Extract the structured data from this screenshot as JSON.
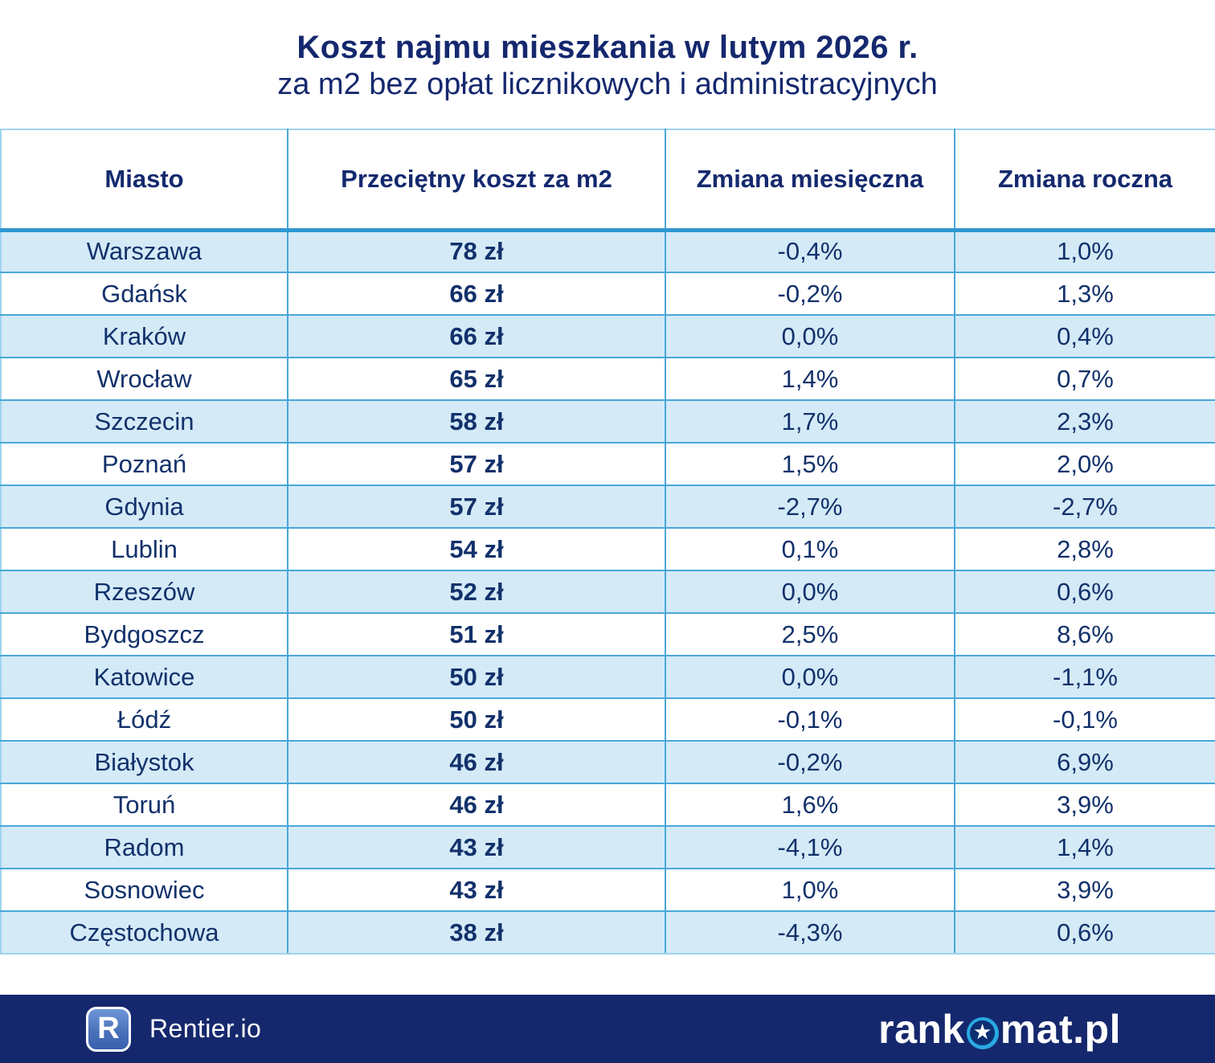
{
  "title": {
    "line1": "Koszt najmu mieszkania w lutym 2026 r.",
    "line2": "za m2 bez opłat licznikowych i administracyjnych"
  },
  "chart_data": {
    "type": "table",
    "title": "Koszt najmu mieszkania w lutym 2026 r. za m2 bez opłat licznikowych i administracyjnych",
    "columns": [
      "Miasto",
      "Przeciętny koszt za m2",
      "Zmiana miesięczna",
      "Zmiana roczna"
    ],
    "rows": [
      {
        "city": "Warszawa",
        "cost": "78 zł",
        "monthly": "-0,4%",
        "yearly": "1,0%"
      },
      {
        "city": "Gdańsk",
        "cost": "66 zł",
        "monthly": "-0,2%",
        "yearly": "1,3%"
      },
      {
        "city": "Kraków",
        "cost": "66 zł",
        "monthly": "0,0%",
        "yearly": "0,4%"
      },
      {
        "city": "Wrocław",
        "cost": "65 zł",
        "monthly": "1,4%",
        "yearly": "0,7%"
      },
      {
        "city": "Szczecin",
        "cost": "58 zł",
        "monthly": "1,7%",
        "yearly": "2,3%"
      },
      {
        "city": "Poznań",
        "cost": "57 zł",
        "monthly": "1,5%",
        "yearly": "2,0%"
      },
      {
        "city": "Gdynia",
        "cost": "57 zł",
        "monthly": "-2,7%",
        "yearly": "-2,7%"
      },
      {
        "city": "Lublin",
        "cost": "54 zł",
        "monthly": "0,1%",
        "yearly": "2,8%"
      },
      {
        "city": "Rzeszów",
        "cost": "52 zł",
        "monthly": "0,0%",
        "yearly": "0,6%"
      },
      {
        "city": "Bydgoszcz",
        "cost": "51 zł",
        "monthly": "2,5%",
        "yearly": "8,6%"
      },
      {
        "city": "Katowice",
        "cost": "50 zł",
        "monthly": "0,0%",
        "yearly": "-1,1%"
      },
      {
        "city": "Łódź",
        "cost": "50 zł",
        "monthly": "-0,1%",
        "yearly": "-0,1%"
      },
      {
        "city": "Białystok",
        "cost": "46 zł",
        "monthly": "-0,2%",
        "yearly": "6,9%"
      },
      {
        "city": "Toruń",
        "cost": "46 zł",
        "monthly": "1,6%",
        "yearly": "3,9%"
      },
      {
        "city": "Radom",
        "cost": "43 zł",
        "monthly": "-4,1%",
        "yearly": "1,4%"
      },
      {
        "city": "Sosnowiec",
        "cost": "43 zł",
        "monthly": "1,0%",
        "yearly": "3,9%"
      },
      {
        "city": "Częstochowa",
        "cost": "38 zł",
        "monthly": "-4,3%",
        "yearly": "0,6%"
      }
    ]
  },
  "footer": {
    "rentier_badge_letter": "R",
    "rentier_label": "Rentier.io",
    "rankomat_part1": "rank",
    "rankomat_part2": "mat.pl",
    "rankomat_star": "★"
  },
  "colors": {
    "navy_text": "#15286e",
    "cell_text": "#12316b",
    "row_alt_bg": "#d4eaf7",
    "table_border": "#4aa7d9",
    "header_separator": "#2e98d1",
    "footer_bg": "#16286d",
    "star_cyan": "#2aa9e1"
  }
}
